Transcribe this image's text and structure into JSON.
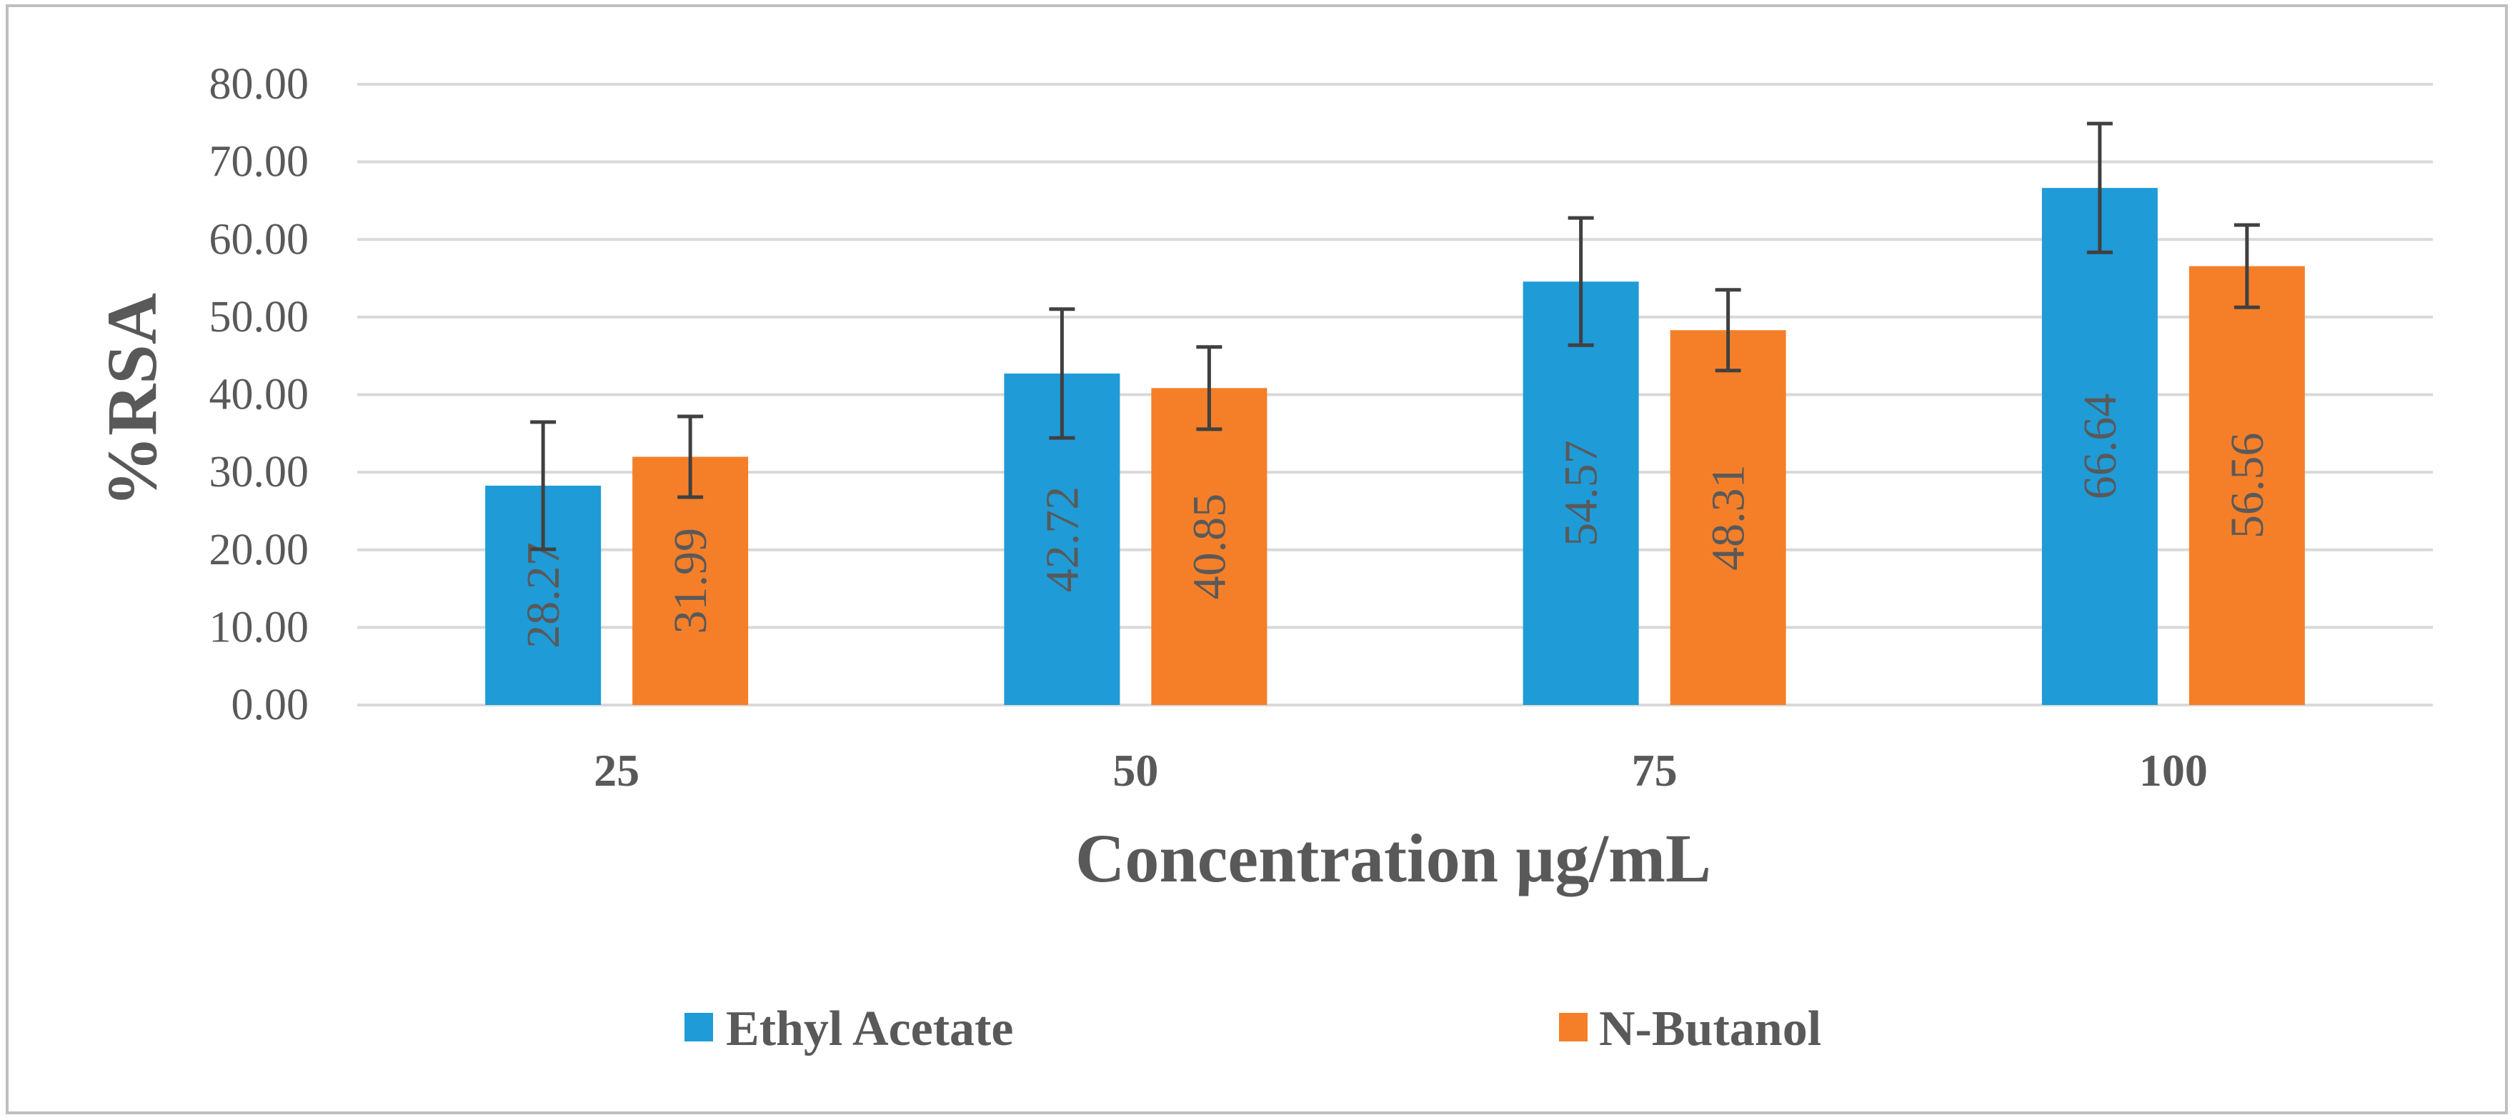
{
  "chart_data": {
    "type": "bar",
    "title": "",
    "xlabel": "Concentration µg/mL",
    "ylabel": "%RSA",
    "categories": [
      "25",
      "50",
      "75",
      "100"
    ],
    "ylim": [
      0,
      80
    ],
    "yticks": [
      0,
      10,
      20,
      30,
      40,
      50,
      60,
      70,
      80
    ],
    "ytick_labels": [
      "0.00",
      "10.00",
      "20.00",
      "30.00",
      "40.00",
      "50.00",
      "60.00",
      "70.00",
      "80.00"
    ],
    "grid": true,
    "legend_position": "bottom",
    "series": [
      {
        "name": "Ethyl Acetate",
        "color": "#1f9bd7",
        "values": [
          28.27,
          42.72,
          54.57,
          66.64
        ],
        "labels": [
          "28.27",
          "42.72",
          "54.57",
          "66.64"
        ],
        "errors": [
          8.2,
          8.3,
          8.2,
          8.3
        ]
      },
      {
        "name": "N-Butanol",
        "color": "#f57f29",
        "values": [
          31.99,
          40.85,
          48.31,
          56.56
        ],
        "labels": [
          "31.99",
          "40.85",
          "48.31",
          "56.56"
        ],
        "errors": [
          5.2,
          5.3,
          5.2,
          5.3
        ]
      }
    ],
    "colors": {
      "grid": "#d9d9d9",
      "axis": "#d9d9d9",
      "text": "#595959",
      "error_bar": "#404040",
      "border": "#bfbfbf"
    }
  }
}
